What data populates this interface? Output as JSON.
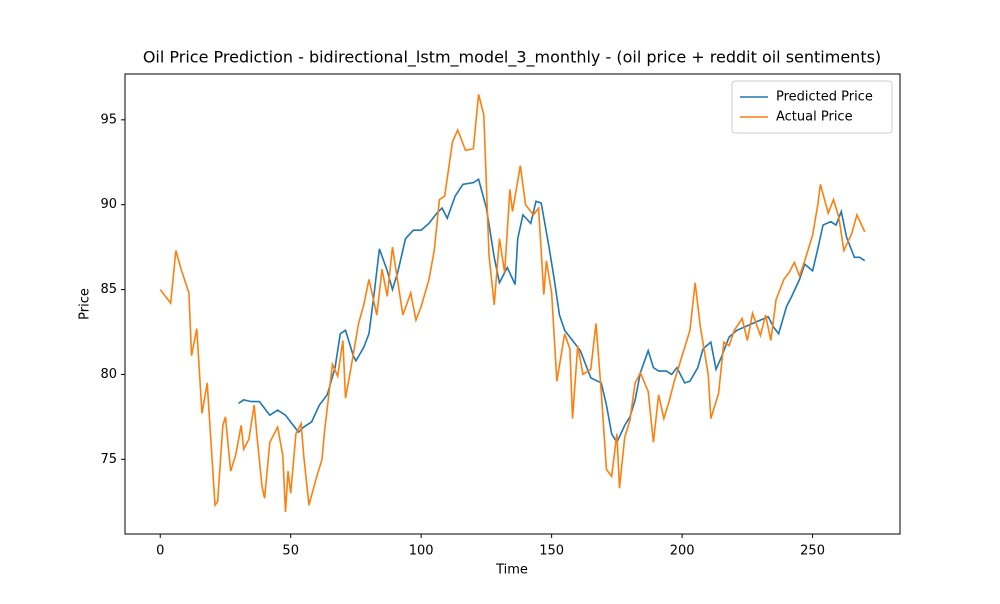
{
  "chart_data": {
    "type": "line",
    "title": "Oil Price Prediction - bidirectional_lstm_model_3_monthly - (oil price + reddit oil sentiments)",
    "xlabel": "Time",
    "ylabel": "Price",
    "xlim": [
      -13.5,
      283.5
    ],
    "ylim": [
      70.6,
      97.7
    ],
    "xticks": [
      0,
      50,
      100,
      150,
      200,
      250
    ],
    "yticks": [
      75,
      80,
      85,
      90,
      95
    ],
    "grid": false,
    "legend": "upper right",
    "series": [
      {
        "name": "Predicted Price",
        "color": "#1f77b4",
        "x": [
          30,
          32,
          35,
          38,
          40,
          42,
          45,
          48,
          50,
          53,
          55,
          58,
          61,
          64,
          67,
          69,
          71,
          74,
          75,
          78,
          80,
          82,
          84,
          87,
          89,
          91,
          94,
          97,
          100,
          103,
          106,
          108,
          110,
          113,
          116,
          120,
          122,
          125,
          128,
          130,
          133,
          136,
          137,
          139,
          142,
          144,
          146,
          149,
          151,
          153,
          155,
          158,
          161,
          163,
          165,
          169,
          171,
          173,
          175,
          178,
          180,
          182,
          184,
          187,
          189,
          191,
          194,
          196,
          198,
          201,
          203,
          206,
          208,
          211,
          213,
          215,
          218,
          221,
          224,
          227,
          230,
          233,
          235,
          237,
          240,
          242,
          245,
          247,
          250,
          252,
          254,
          257,
          259,
          261,
          263,
          266,
          268,
          270
        ],
        "values": [
          78.3,
          78.5,
          78.4,
          78.4,
          78.0,
          77.6,
          77.9,
          77.6,
          77.2,
          76.6,
          76.9,
          77.2,
          78.2,
          78.8,
          80.4,
          82.4,
          82.6,
          81.1,
          80.8,
          81.6,
          82.4,
          84.8,
          87.4,
          86.1,
          85.0,
          86.0,
          88.0,
          88.5,
          88.5,
          88.9,
          89.5,
          89.8,
          89.2,
          90.5,
          91.2,
          91.3,
          91.5,
          89.8,
          86.9,
          85.4,
          86.3,
          85.3,
          88.0,
          89.4,
          88.9,
          90.2,
          90.1,
          87.5,
          85.6,
          83.5,
          82.6,
          82.0,
          81.4,
          80.6,
          79.8,
          79.5,
          78.2,
          76.5,
          76.0,
          77.0,
          77.5,
          78.5,
          80.1,
          81.4,
          80.4,
          80.2,
          80.2,
          80.0,
          80.4,
          79.5,
          79.6,
          80.4,
          81.5,
          81.9,
          80.3,
          81.0,
          82.2,
          82.6,
          82.8,
          83.0,
          83.2,
          83.4,
          82.8,
          82.4,
          84.0,
          84.6,
          85.6,
          86.5,
          86.1,
          87.4,
          88.8,
          89.0,
          88.8,
          89.6,
          88.1,
          86.9,
          86.9,
          86.7
        ]
      },
      {
        "name": "Actual Price",
        "color": "#ff7f0e",
        "x": [
          0,
          4,
          6,
          8,
          11,
          12,
          14,
          16,
          18,
          21,
          22,
          24,
          25,
          27,
          29,
          31,
          32,
          34,
          36,
          37,
          39,
          40,
          42,
          45,
          47,
          48,
          49,
          50,
          52,
          54,
          55,
          57,
          60,
          62,
          63,
          66,
          68,
          70,
          71,
          73,
          76,
          78,
          80,
          83,
          85,
          87,
          89,
          90,
          93,
          96,
          98,
          100,
          103,
          105,
          107,
          109,
          112,
          114,
          117,
          120,
          122,
          124,
          126,
          128,
          130,
          132,
          134,
          135,
          138,
          140,
          143,
          145,
          147,
          148,
          150,
          152,
          155,
          157,
          158,
          160,
          162,
          165,
          167,
          169,
          171,
          173,
          175,
          176,
          178,
          180,
          182,
          184,
          187,
          189,
          191,
          193,
          195,
          197,
          200,
          203,
          205,
          207,
          210,
          211,
          214,
          216,
          218,
          220,
          223,
          225,
          227,
          230,
          232,
          234,
          236,
          239,
          241,
          243,
          245,
          247,
          250,
          252,
          253,
          256,
          258,
          260,
          262,
          265,
          267,
          270
        ],
        "values": [
          85.0,
          84.2,
          87.3,
          86.2,
          84.8,
          81.1,
          82.7,
          77.7,
          79.5,
          72.3,
          72.5,
          77.0,
          77.5,
          74.3,
          75.3,
          77.0,
          75.6,
          76.2,
          78.2,
          76.5,
          73.4,
          72.7,
          76.0,
          76.9,
          75.2,
          71.9,
          74.3,
          73.0,
          76.5,
          77.1,
          75.2,
          72.3,
          74.0,
          75.0,
          76.7,
          80.6,
          79.9,
          82.0,
          78.6,
          80.3,
          83.0,
          84.1,
          85.6,
          83.5,
          86.2,
          84.6,
          87.5,
          86.5,
          83.5,
          84.8,
          83.2,
          84.0,
          85.6,
          87.3,
          90.3,
          90.5,
          93.7,
          94.4,
          93.2,
          93.3,
          96.5,
          95.3,
          87.0,
          84.1,
          88.0,
          86.0,
          90.9,
          89.6,
          92.3,
          90.0,
          89.4,
          89.8,
          84.7,
          86.7,
          84.8,
          79.6,
          82.4,
          81.5,
          77.4,
          81.7,
          80.0,
          80.3,
          83.0,
          79.0,
          74.4,
          74.0,
          76.5,
          73.3,
          76.3,
          77.3,
          79.5,
          80.1,
          79.0,
          76.0,
          78.8,
          77.4,
          78.4,
          79.6,
          81.1,
          82.6,
          85.4,
          82.8,
          80.0,
          77.4,
          78.9,
          81.9,
          81.7,
          82.6,
          83.3,
          82.0,
          83.6,
          82.3,
          83.5,
          82.0,
          84.4,
          85.6,
          86.0,
          86.6,
          85.8,
          86.7,
          88.2,
          90.0,
          91.2,
          89.5,
          90.3,
          89.3,
          87.3,
          88.3,
          89.4,
          88.4
        ]
      }
    ]
  }
}
